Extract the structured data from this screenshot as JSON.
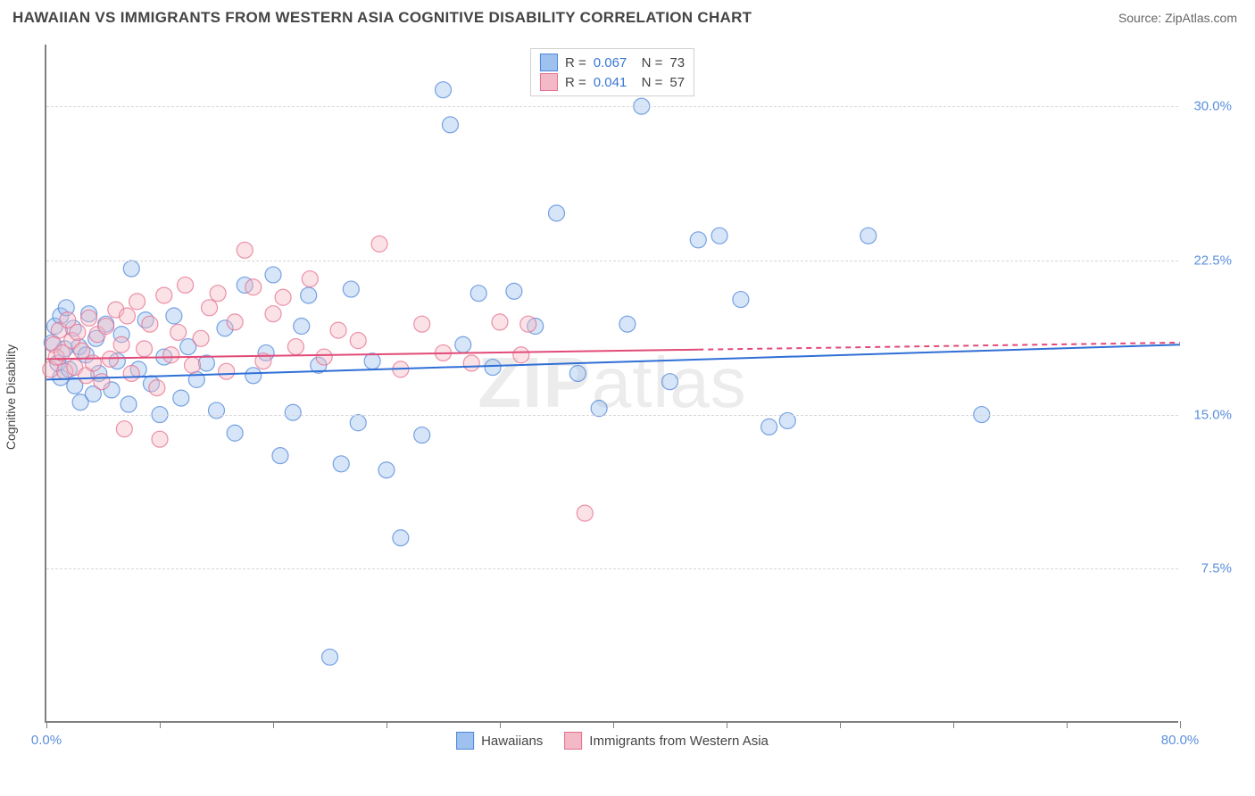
{
  "title": "HAWAIIAN VS IMMIGRANTS FROM WESTERN ASIA COGNITIVE DISABILITY CORRELATION CHART",
  "source_label": "Source: ",
  "source_name": "ZipAtlas.com",
  "watermark": "ZIPatlas",
  "y_axis_label": "Cognitive Disability",
  "chart": {
    "type": "scatter",
    "xlim": [
      0,
      80
    ],
    "ylim": [
      0,
      33
    ],
    "x_ticks": [
      0,
      8,
      16,
      24,
      32,
      40,
      48,
      56,
      64,
      72,
      80
    ],
    "x_tick_labels": {
      "0": "0.0%",
      "80": "80.0%"
    },
    "y_ticks": [
      7.5,
      15.0,
      22.5,
      30.0
    ],
    "y_tick_labels": [
      "7.5%",
      "15.0%",
      "22.5%",
      "30.0%"
    ],
    "grid_color": "#d7d7d7",
    "background_color": "#ffffff",
    "axis_color": "#808080",
    "label_color": "#5b8fdc",
    "marker_radius": 9,
    "marker_opacity": 0.42,
    "marker_stroke_opacity": 0.75,
    "line_width": 2,
    "series": [
      {
        "name": "Hawaiians",
        "R": "0.067",
        "N": "73",
        "fill_color": "#9ec1ef",
        "stroke_color": "#4f86d9",
        "line_color": "#2f6fd6",
        "trend": {
          "x1": 0,
          "y1": 16.7,
          "x2": 80,
          "y2": 18.4,
          "solid_until": 80
        },
        "data": [
          [
            0.4,
            18.5
          ],
          [
            0.6,
            19.3
          ],
          [
            0.8,
            17.5
          ],
          [
            1.0,
            19.8
          ],
          [
            1.0,
            16.8
          ],
          [
            1.3,
            18.2
          ],
          [
            1.4,
            20.2
          ],
          [
            1.6,
            17.2
          ],
          [
            1.9,
            19.2
          ],
          [
            2.0,
            16.4
          ],
          [
            2.3,
            18.3
          ],
          [
            2.4,
            15.6
          ],
          [
            2.8,
            17.9
          ],
          [
            3.0,
            19.9
          ],
          [
            3.3,
            16.0
          ],
          [
            3.5,
            18.7
          ],
          [
            3.7,
            17.0
          ],
          [
            4.2,
            19.4
          ],
          [
            4.6,
            16.2
          ],
          [
            5.0,
            17.6
          ],
          [
            5.3,
            18.9
          ],
          [
            5.8,
            15.5
          ],
          [
            6.0,
            22.1
          ],
          [
            6.5,
            17.2
          ],
          [
            7.0,
            19.6
          ],
          [
            7.4,
            16.5
          ],
          [
            8.0,
            15.0
          ],
          [
            8.3,
            17.8
          ],
          [
            9.0,
            19.8
          ],
          [
            9.5,
            15.8
          ],
          [
            10.0,
            18.3
          ],
          [
            10.6,
            16.7
          ],
          [
            11.3,
            17.5
          ],
          [
            12.0,
            15.2
          ],
          [
            12.6,
            19.2
          ],
          [
            13.3,
            14.1
          ],
          [
            14.0,
            21.3
          ],
          [
            14.6,
            16.9
          ],
          [
            15.5,
            18.0
          ],
          [
            16.0,
            21.8
          ],
          [
            16.5,
            13.0
          ],
          [
            17.4,
            15.1
          ],
          [
            18.0,
            19.3
          ],
          [
            18.5,
            20.8
          ],
          [
            19.2,
            17.4
          ],
          [
            20.0,
            3.2
          ],
          [
            20.8,
            12.6
          ],
          [
            21.5,
            21.1
          ],
          [
            22.0,
            14.6
          ],
          [
            23.0,
            17.6
          ],
          [
            24.0,
            12.3
          ],
          [
            25.0,
            9.0
          ],
          [
            26.5,
            14.0
          ],
          [
            28.0,
            30.8
          ],
          [
            28.5,
            29.1
          ],
          [
            29.4,
            18.4
          ],
          [
            30.5,
            20.9
          ],
          [
            31.5,
            17.3
          ],
          [
            33.0,
            21.0
          ],
          [
            34.5,
            19.3
          ],
          [
            36.0,
            24.8
          ],
          [
            37.5,
            17.0
          ],
          [
            39.0,
            15.3
          ],
          [
            41.0,
            19.4
          ],
          [
            44.0,
            16.6
          ],
          [
            46.0,
            23.5
          ],
          [
            47.5,
            23.7
          ],
          [
            49.0,
            20.6
          ],
          [
            51.0,
            14.4
          ],
          [
            52.3,
            14.7
          ],
          [
            58.0,
            23.7
          ],
          [
            66.0,
            15.0
          ],
          [
            42.0,
            30.0
          ]
        ]
      },
      {
        "name": "Immigrants from Western Asia",
        "R": "0.041",
        "N": "57",
        "fill_color": "#f3b9c6",
        "stroke_color": "#e56f8e",
        "line_color": "#e24a78",
        "trend": {
          "x1": 0,
          "y1": 17.7,
          "x2": 80,
          "y2": 18.5,
          "solid_until": 46
        },
        "data": [
          [
            0.3,
            17.2
          ],
          [
            0.5,
            18.4
          ],
          [
            0.7,
            17.8
          ],
          [
            0.9,
            19.1
          ],
          [
            1.1,
            18.0
          ],
          [
            1.3,
            17.1
          ],
          [
            1.5,
            19.6
          ],
          [
            1.8,
            18.6
          ],
          [
            2.0,
            17.3
          ],
          [
            2.2,
            19.0
          ],
          [
            2.5,
            18.1
          ],
          [
            2.8,
            16.9
          ],
          [
            3.0,
            19.7
          ],
          [
            3.3,
            17.5
          ],
          [
            3.6,
            18.9
          ],
          [
            3.9,
            16.6
          ],
          [
            4.2,
            19.3
          ],
          [
            4.5,
            17.7
          ],
          [
            4.9,
            20.1
          ],
          [
            5.3,
            18.4
          ],
          [
            5.7,
            19.8
          ],
          [
            6.0,
            17.0
          ],
          [
            6.4,
            20.5
          ],
          [
            6.9,
            18.2
          ],
          [
            7.3,
            19.4
          ],
          [
            7.8,
            16.3
          ],
          [
            8.3,
            20.8
          ],
          [
            8.8,
            17.9
          ],
          [
            9.3,
            19.0
          ],
          [
            9.8,
            21.3
          ],
          [
            10.3,
            17.4
          ],
          [
            10.9,
            18.7
          ],
          [
            11.5,
            20.2
          ],
          [
            12.1,
            20.9
          ],
          [
            12.7,
            17.1
          ],
          [
            13.3,
            19.5
          ],
          [
            14.0,
            23.0
          ],
          [
            14.6,
            21.2
          ],
          [
            15.3,
            17.6
          ],
          [
            16.0,
            19.9
          ],
          [
            16.7,
            20.7
          ],
          [
            17.6,
            18.3
          ],
          [
            18.6,
            21.6
          ],
          [
            19.6,
            17.8
          ],
          [
            20.6,
            19.1
          ],
          [
            22.0,
            18.6
          ],
          [
            23.5,
            23.3
          ],
          [
            25.0,
            17.2
          ],
          [
            26.5,
            19.4
          ],
          [
            28.0,
            18.0
          ],
          [
            30.0,
            17.5
          ],
          [
            32.0,
            19.5
          ],
          [
            33.5,
            17.9
          ],
          [
            34.0,
            19.4
          ],
          [
            5.5,
            14.3
          ],
          [
            8.0,
            13.8
          ],
          [
            38.0,
            10.2
          ]
        ]
      }
    ]
  },
  "legend_bottom": [
    {
      "label": "Hawaiians",
      "fill": "#9ec1ef",
      "stroke": "#4f86d9"
    },
    {
      "label": "Immigrants from Western Asia",
      "fill": "#f3b9c6",
      "stroke": "#e56f8e"
    }
  ]
}
